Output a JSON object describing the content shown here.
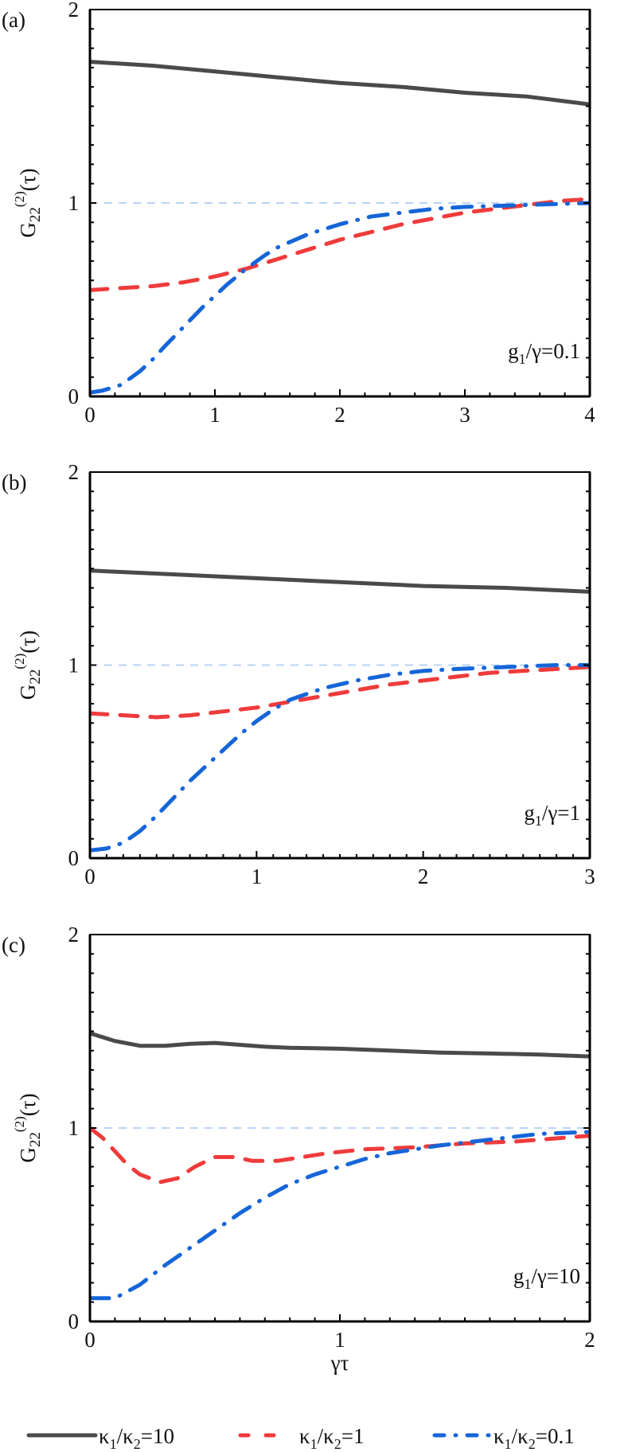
{
  "colors": {
    "series_black": "#4a4a4a",
    "series_red": "#ef3b3b",
    "series_blue": "#1565d8",
    "reference_line": "#b9d3f7",
    "axis": "#000000"
  },
  "legend": {
    "position": "bottom",
    "entries": [
      {
        "base": "κ",
        "sub1": "1",
        "mid": "/κ",
        "sub2": "2",
        "tail": "=10",
        "style": "solid",
        "color_key": "series_black"
      },
      {
        "base": "κ",
        "sub1": "1",
        "mid": "/κ",
        "sub2": "2",
        "tail": "=1",
        "style": "dashed",
        "color_key": "series_red"
      },
      {
        "base": "κ",
        "sub1": "1",
        "mid": "/κ",
        "sub2": "2",
        "tail": "=0.1",
        "style": "dashdot",
        "color_key": "series_blue"
      }
    ]
  },
  "shared": {
    "ylabel": {
      "base": "G",
      "sub": "22",
      "sup": "(2)",
      "tail": "(τ)"
    },
    "xlabel": "γτ"
  },
  "chart_data": [
    {
      "type": "line",
      "panel_label": "(a)",
      "annotation": {
        "base": "g",
        "sub": "1",
        "tail": "/γ=0.1"
      },
      "xlim": [
        0,
        4
      ],
      "ylim": [
        0,
        2
      ],
      "xticks": [
        0,
        1,
        2,
        3,
        4
      ],
      "xtick_labels": [
        "0",
        "1",
        "2",
        "3",
        "4"
      ],
      "yticks": [
        0,
        1,
        2
      ],
      "ytick_labels": [
        "0",
        "1",
        "2"
      ],
      "x_minor_step": 0.2,
      "y_minor_step": 0.1,
      "reference_y": 1,
      "series": [
        {
          "name": "κ1/κ2=10",
          "x": [
            0,
            0.25,
            0.5,
            1,
            1.5,
            2,
            2.5,
            3,
            3.5,
            4
          ],
          "y": [
            1.73,
            1.72,
            1.71,
            1.68,
            1.65,
            1.62,
            1.6,
            1.57,
            1.55,
            1.51
          ]
        },
        {
          "name": "κ1/κ2=1",
          "x": [
            0,
            0.25,
            0.5,
            0.75,
            1,
            1.25,
            1.5,
            1.75,
            2,
            2.25,
            2.5,
            2.75,
            3,
            3.25,
            3.5,
            3.75,
            4
          ],
          "y": [
            0.55,
            0.56,
            0.57,
            0.59,
            0.62,
            0.66,
            0.71,
            0.76,
            0.81,
            0.85,
            0.89,
            0.92,
            0.95,
            0.97,
            0.99,
            1.01,
            1.02
          ]
        },
        {
          "name": "κ1/κ2=0.1",
          "x": [
            0,
            0.1,
            0.25,
            0.4,
            0.5,
            0.6,
            0.75,
            0.9,
            1,
            1.1,
            1.25,
            1.4,
            1.5,
            1.75,
            2,
            2.25,
            2.5,
            2.75,
            3,
            3.5,
            4
          ],
          "y": [
            0.02,
            0.03,
            0.06,
            0.13,
            0.19,
            0.26,
            0.36,
            0.46,
            0.52,
            0.58,
            0.66,
            0.73,
            0.77,
            0.84,
            0.89,
            0.93,
            0.95,
            0.97,
            0.98,
            0.99,
            1.0
          ]
        }
      ]
    },
    {
      "type": "line",
      "panel_label": "(b)",
      "annotation": {
        "base": "g",
        "sub": "1",
        "tail": "/γ=1"
      },
      "xlim": [
        0,
        3
      ],
      "ylim": [
        0,
        2
      ],
      "xticks": [
        0,
        1,
        2,
        3
      ],
      "xtick_labels": [
        "0",
        "1",
        "2",
        "3"
      ],
      "yticks": [
        0,
        1,
        2
      ],
      "ytick_labels": [
        "0",
        "1",
        "2"
      ],
      "x_minor_step": 0.1,
      "y_minor_step": 0.1,
      "reference_y": 1,
      "series": [
        {
          "name": "κ1/κ2=10",
          "x": [
            0,
            0.5,
            1,
            1.5,
            2,
            2.5,
            3
          ],
          "y": [
            1.49,
            1.47,
            1.45,
            1.43,
            1.41,
            1.4,
            1.38
          ]
        },
        {
          "name": "κ1/κ2=1",
          "x": [
            0,
            0.2,
            0.4,
            0.6,
            0.8,
            1.0,
            1.2,
            1.4,
            1.6,
            1.8,
            2.0,
            2.2,
            2.4,
            2.6,
            2.8,
            3.0
          ],
          "y": [
            0.75,
            0.74,
            0.73,
            0.74,
            0.76,
            0.78,
            0.81,
            0.84,
            0.87,
            0.9,
            0.92,
            0.94,
            0.96,
            0.97,
            0.98,
            0.99
          ]
        },
        {
          "name": "κ1/κ2=0.1",
          "x": [
            0,
            0.1,
            0.2,
            0.3,
            0.4,
            0.5,
            0.6,
            0.7,
            0.8,
            0.9,
            1.0,
            1.1,
            1.2,
            1.4,
            1.6,
            1.8,
            2.0,
            2.2,
            2.5,
            2.8,
            3.0
          ],
          "y": [
            0.04,
            0.05,
            0.08,
            0.14,
            0.22,
            0.31,
            0.4,
            0.48,
            0.56,
            0.64,
            0.71,
            0.77,
            0.82,
            0.88,
            0.92,
            0.95,
            0.97,
            0.98,
            0.99,
            1.0,
            1.0
          ]
        }
      ]
    },
    {
      "type": "line",
      "panel_label": "(c)",
      "annotation": {
        "base": "g",
        "sub": "1",
        "tail": "/γ=10"
      },
      "xlim": [
        0,
        2
      ],
      "ylim": [
        0,
        2
      ],
      "xticks": [
        0,
        1,
        2
      ],
      "xtick_labels": [
        "0",
        "1",
        "2"
      ],
      "yticks": [
        0,
        1,
        2
      ],
      "ytick_labels": [
        "0",
        "1",
        "2"
      ],
      "x_minor_step": 0.1,
      "y_minor_step": 0.1,
      "reference_y": 1,
      "series": [
        {
          "name": "κ1/κ2=10",
          "x": [
            0,
            0.1,
            0.2,
            0.3,
            0.4,
            0.5,
            0.6,
            0.7,
            0.8,
            1.0,
            1.2,
            1.4,
            1.6,
            1.8,
            2.0
          ],
          "y": [
            1.49,
            1.45,
            1.425,
            1.425,
            1.435,
            1.44,
            1.43,
            1.42,
            1.415,
            1.41,
            1.4,
            1.39,
            1.385,
            1.38,
            1.37
          ]
        },
        {
          "name": "κ1/κ2=1",
          "x": [
            0,
            0.05,
            0.1,
            0.15,
            0.2,
            0.28,
            0.35,
            0.42,
            0.5,
            0.58,
            0.65,
            0.75,
            0.85,
            0.95,
            1.1,
            1.3,
            1.5,
            1.7,
            1.9,
            2.0
          ],
          "y": [
            1.0,
            0.95,
            0.88,
            0.81,
            0.76,
            0.72,
            0.74,
            0.8,
            0.85,
            0.85,
            0.83,
            0.83,
            0.85,
            0.87,
            0.89,
            0.9,
            0.92,
            0.93,
            0.95,
            0.96
          ]
        },
        {
          "name": "κ1/κ2=0.1",
          "x": [
            0,
            0.05,
            0.1,
            0.2,
            0.3,
            0.4,
            0.5,
            0.6,
            0.7,
            0.8,
            0.9,
            1.0,
            1.1,
            1.2,
            1.4,
            1.6,
            1.8,
            2.0
          ],
          "y": [
            0.12,
            0.12,
            0.12,
            0.19,
            0.29,
            0.38,
            0.47,
            0.56,
            0.64,
            0.71,
            0.76,
            0.8,
            0.84,
            0.87,
            0.91,
            0.94,
            0.97,
            0.98
          ]
        }
      ]
    }
  ]
}
